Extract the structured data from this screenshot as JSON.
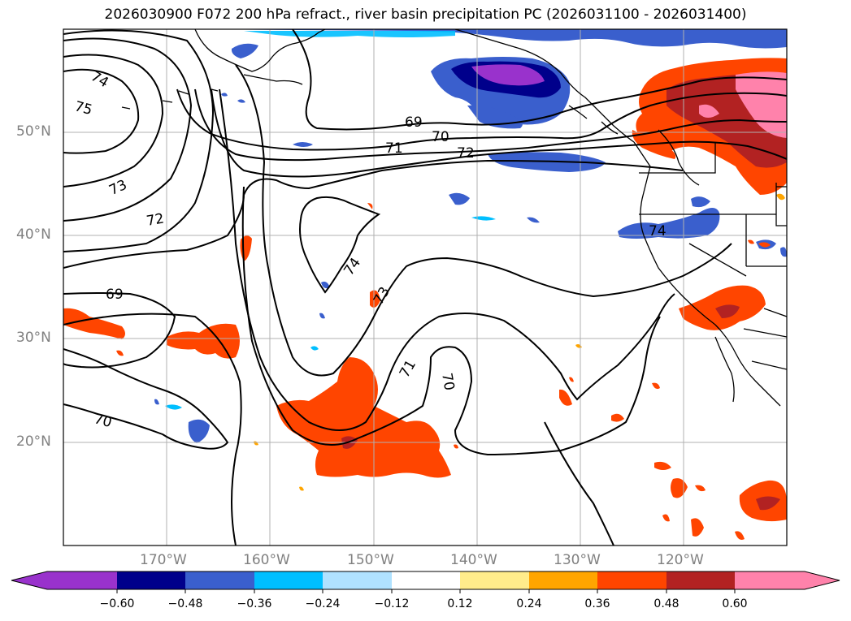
{
  "title": "2026030900 F072 200 hPa refract., river basin precipitation PC (2026031100 - 2026031400)",
  "lat_labels": [
    "50°N",
    "40°N",
    "30°N",
    "20°N"
  ],
  "lon_labels": [
    "170°W",
    "160°W",
    "150°W",
    "140°W",
    "130°W",
    "120°W"
  ],
  "contour_labels": [
    "74",
    "75",
    "73",
    "72",
    "69",
    "70",
    "69",
    "70",
    "71",
    "72",
    "74",
    "73",
    "71",
    "70",
    "74"
  ],
  "colorbar": {
    "ticks": [
      "−0.60",
      "−0.48",
      "−0.36",
      "−0.24",
      "−0.12",
      "0.12",
      "0.24",
      "0.36",
      "0.48",
      "0.60"
    ],
    "colors": [
      "#9932cc",
      "#00008b",
      "#3a5fcd",
      "#00bfff",
      "#b0e2ff",
      "#ffffff",
      "#ffec8b",
      "#ffa500",
      "#ff4500",
      "#b22222",
      "#ff82ab"
    ]
  },
  "colors": {
    "grid": "#b0b0b0",
    "contour": "#000000",
    "coast": "#000000"
  }
}
